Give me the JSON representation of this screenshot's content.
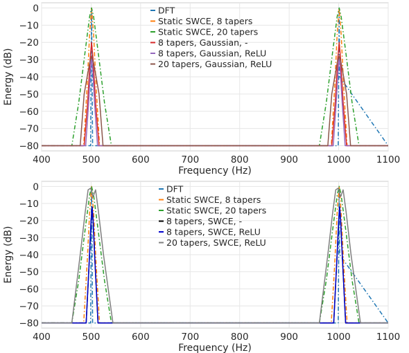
{
  "chart_data": [
    {
      "type": "line",
      "xlabel": "Frequency (Hz)",
      "ylabel": "Energy (dB)",
      "xlim": [
        400,
        1100
      ],
      "ylim": [
        -83,
        3
      ],
      "xticks": [
        "400",
        "500",
        "600",
        "700",
        "800",
        "900",
        "1000",
        "1100"
      ],
      "yticks": [
        "0",
        "−10",
        "−20",
        "−30",
        "−40",
        "−50",
        "−60",
        "−70",
        "−80"
      ],
      "grid": true,
      "legend_position": "top-center",
      "series": [
        {
          "name": "DFT",
          "color": "#1f77b4",
          "style": "dashdot",
          "x": [
            400,
            499,
            500,
            501,
            502,
            503,
            999,
            1000,
            1001,
            1002,
            1100
          ],
          "y": [
            -80,
            -80,
            -40,
            0,
            -40,
            -80,
            -80,
            -40,
            0,
            -40,
            -80
          ]
        },
        {
          "name": "Static SWCE, 8 tapers",
          "color": "#ff7f0e",
          "style": "dashdot",
          "x": [
            400,
            485,
            492,
            497,
            501,
            505,
            510,
            517,
            985,
            992,
            997,
            1001,
            1005,
            1010,
            1017,
            1100
          ],
          "y": [
            -80,
            -80,
            -45,
            -15,
            0,
            -15,
            -45,
            -80,
            -80,
            -45,
            -15,
            0,
            -15,
            -45,
            -80,
            -80
          ]
        },
        {
          "name": "Static SWCE, 20 tapers",
          "color": "#2ca02c",
          "style": "dashdot",
          "x": [
            400,
            461,
            475,
            488,
            497,
            501,
            505,
            514,
            527,
            541,
            961,
            975,
            988,
            997,
            1001,
            1005,
            1014,
            1027,
            1041,
            1100
          ],
          "y": [
            -80,
            -80,
            -55,
            -25,
            -5,
            0,
            -5,
            -25,
            -55,
            -80,
            -80,
            -55,
            -25,
            -5,
            0,
            -5,
            -25,
            -55,
            -80,
            -80
          ]
        },
        {
          "name": "8 tapers, Gaussian, -",
          "color": "#d62728",
          "style": "solid",
          "x": [
            400,
            486,
            493,
            498,
            501,
            504,
            509,
            516,
            986,
            993,
            998,
            1001,
            1004,
            1009,
            1016,
            1100
          ],
          "y": [
            -80,
            -80,
            -55,
            -30,
            -20,
            -30,
            -55,
            -80,
            -80,
            -55,
            -30,
            -20,
            -30,
            -55,
            -80,
            -80
          ]
        },
        {
          "name": "8 tapers, Gaussian, ReLU",
          "color": "#9467bd",
          "style": "solid",
          "x": [
            400,
            489,
            495,
            499,
            501,
            503,
            507,
            513,
            989,
            995,
            999,
            1001,
            1003,
            1007,
            1013,
            1100
          ],
          "y": [
            -80,
            -80,
            -55,
            -35,
            -28,
            -35,
            -55,
            -80,
            -80,
            -55,
            -35,
            -28,
            -35,
            -55,
            -80,
            -80
          ]
        },
        {
          "name": "20 tapers, Gaussian, ReLU",
          "color": "#8c564b",
          "style": "solid",
          "x": [
            400,
            478,
            486,
            492,
            497,
            501,
            505,
            510,
            516,
            524,
            978,
            986,
            992,
            997,
            1001,
            1005,
            1010,
            1016,
            1024,
            1100
          ],
          "y": [
            -80,
            -80,
            -50,
            -40,
            -32,
            -28,
            -32,
            -40,
            -50,
            -80,
            -80,
            -50,
            -40,
            -32,
            -28,
            -32,
            -40,
            -50,
            -80,
            -80
          ]
        }
      ]
    },
    {
      "type": "line",
      "xlabel": "Frequency (Hz)",
      "ylabel": "Energy (dB)",
      "xlim": [
        400,
        1100
      ],
      "ylim": [
        -83,
        3
      ],
      "xticks": [
        "400",
        "500",
        "600",
        "700",
        "800",
        "900",
        "1000",
        "1100"
      ],
      "yticks": [
        "0",
        "−10",
        "−20",
        "−30",
        "−40",
        "−50",
        "−60",
        "−70",
        "−80"
      ],
      "grid": true,
      "legend_position": "top-center",
      "series": [
        {
          "name": "DFT",
          "color": "#1f77b4",
          "style": "dashdot",
          "x": [
            400,
            499,
            500,
            501,
            502,
            503,
            999,
            1000,
            1001,
            1002,
            1100
          ],
          "y": [
            -80,
            -80,
            -40,
            0,
            -40,
            -80,
            -80,
            -40,
            0,
            -40,
            -80
          ]
        },
        {
          "name": "Static SWCE, 8 tapers",
          "color": "#ff7f0e",
          "style": "dashdot",
          "x": [
            400,
            485,
            492,
            497,
            501,
            505,
            510,
            517,
            985,
            992,
            997,
            1001,
            1005,
            1010,
            1017,
            1100
          ],
          "y": [
            -80,
            -80,
            -45,
            -15,
            0,
            -15,
            -45,
            -80,
            -80,
            -45,
            -15,
            0,
            -15,
            -45,
            -80,
            -80
          ]
        },
        {
          "name": "Static SWCE, 20 tapers",
          "color": "#2ca02c",
          "style": "dashdot",
          "x": [
            400,
            461,
            475,
            488,
            497,
            501,
            505,
            514,
            527,
            541,
            961,
            975,
            988,
            997,
            1001,
            1005,
            1014,
            1027,
            1041,
            1100
          ],
          "y": [
            -80,
            -80,
            -55,
            -25,
            -5,
            0,
            -5,
            -25,
            -55,
            -80,
            -80,
            -55,
            -25,
            -5,
            0,
            -5,
            -25,
            -55,
            -80,
            -80
          ]
        },
        {
          "name": "8 tapers, SWCE, -",
          "color": "#000000",
          "style": "solid",
          "x": [
            400,
            490,
            496,
            500,
            502,
            504,
            508,
            514,
            990,
            996,
            1000,
            1002,
            1004,
            1008,
            1014,
            1100
          ],
          "y": [
            -80,
            -80,
            -45,
            -20,
            -12,
            -20,
            -45,
            -80,
            -80,
            -45,
            -20,
            -12,
            -20,
            -45,
            -80,
            -80
          ]
        },
        {
          "name": "8 tapers, SWCE, ReLU",
          "color": "#0000cc",
          "style": "solid",
          "x": [
            400,
            490,
            496,
            500,
            502,
            504,
            508,
            514,
            990,
            996,
            1000,
            1002,
            1004,
            1008,
            1014,
            1100
          ],
          "y": [
            -80,
            -80,
            -45,
            -20,
            -12,
            -20,
            -45,
            -80,
            -80,
            -45,
            -20,
            -12,
            -20,
            -45,
            -80,
            -80
          ]
        },
        {
          "name": "20 tapers, SWCE, ReLU",
          "color": "#7f7f7f",
          "style": "solid",
          "x": [
            400,
            461,
            478,
            488,
            494,
            499,
            504,
            509,
            515,
            525,
            544,
            961,
            978,
            988,
            994,
            999,
            1004,
            1009,
            1015,
            1025,
            1044,
            1100
          ],
          "y": [
            -80,
            -80,
            -40,
            -15,
            -2,
            -1,
            -6,
            -2,
            -15,
            -40,
            -80,
            -80,
            -40,
            -15,
            -2,
            -1,
            -6,
            -2,
            -15,
            -40,
            -80,
            -80
          ]
        }
      ]
    }
  ]
}
